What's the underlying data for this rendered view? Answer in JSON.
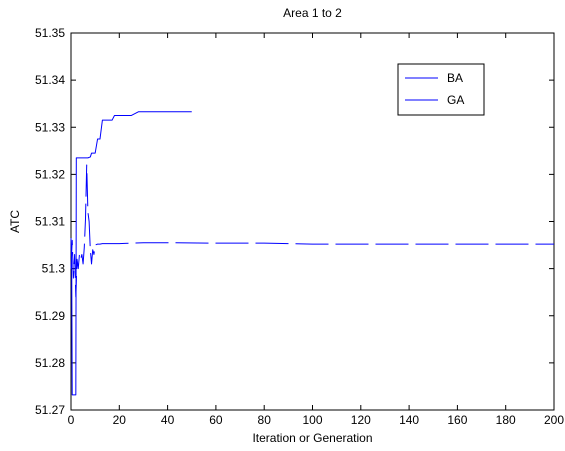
{
  "chart_data": {
    "type": "line",
    "title": "Area 1 to 2",
    "xlabel": "Iteration or Generation",
    "ylabel": "ATC",
    "xlim": [
      0,
      200
    ],
    "ylim": [
      51.27,
      51.35
    ],
    "xticks": [
      0,
      20,
      40,
      60,
      80,
      100,
      120,
      140,
      160,
      180,
      200
    ],
    "yticks": [
      51.27,
      51.28,
      51.29,
      51.3,
      51.31,
      51.32,
      51.33,
      51.34,
      51.35
    ],
    "ytick_labels": [
      "51.27",
      "51.28",
      "51.29",
      "51.3",
      "51.31",
      "51.32",
      "51.33",
      "51.34",
      "51.35"
    ],
    "grid": false,
    "legend_position": "top-right",
    "series": [
      {
        "name": "BA",
        "color": "#0000ff",
        "dash": "solid",
        "x": [
          0,
          0.3,
          0.5,
          1,
          1.5,
          2,
          2.2,
          3,
          3.5,
          4,
          4.5,
          5,
          6,
          7,
          8,
          8.5,
          9,
          10,
          11,
          12,
          13,
          14,
          15,
          17,
          18,
          19,
          20,
          25,
          28,
          30,
          35,
          40,
          45,
          50
        ],
        "y": [
          51.3065,
          51.3,
          51.2732,
          51.2732,
          51.2732,
          51.2732,
          51.3235,
          51.3235,
          51.3235,
          51.3235,
          51.3235,
          51.3235,
          51.3235,
          51.3235,
          51.3237,
          51.3245,
          51.3245,
          51.3245,
          51.3275,
          51.3275,
          51.3315,
          51.3315,
          51.3315,
          51.3315,
          51.3325,
          51.3325,
          51.3325,
          51.3325,
          51.3333,
          51.3333,
          51.3333,
          51.3333,
          51.3333,
          51.3333
        ]
      },
      {
        "name": "GA",
        "color": "#0000ff",
        "dash": "dashed",
        "x": [
          0,
          0.5,
          1,
          1.5,
          2,
          2.5,
          3,
          3.5,
          4,
          4.5,
          5,
          5.5,
          6,
          6.5,
          7,
          7.5,
          8,
          8.5,
          9,
          9.5,
          10,
          11,
          12,
          13,
          15,
          20,
          30,
          40,
          60,
          80,
          100,
          120,
          140,
          160,
          180,
          200
        ],
        "y": [
          51.3,
          51.306,
          51.298,
          51.303,
          51.294,
          51.302,
          51.3,
          51.303,
          51.302,
          51.303,
          51.301,
          51.3045,
          51.3105,
          51.322,
          51.312,
          51.31,
          51.304,
          51.301,
          51.304,
          51.303,
          51.305,
          51.3052,
          51.3052,
          51.3053,
          51.3053,
          51.3053,
          51.3055,
          51.3055,
          51.3054,
          51.3054,
          51.3052,
          51.3052,
          51.3052,
          51.3052,
          51.3052,
          51.3052
        ]
      }
    ]
  }
}
